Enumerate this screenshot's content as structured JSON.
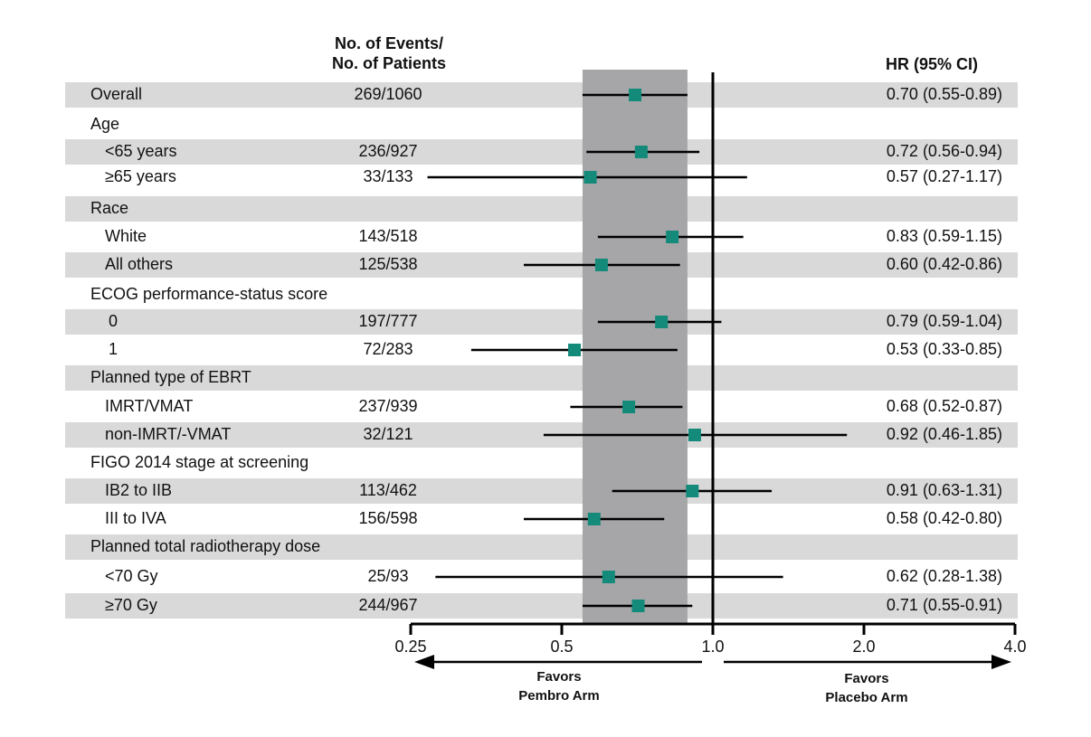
{
  "header": {
    "events_line1": "No. of  Events/",
    "events_line2": "No. of Patients",
    "hr_label": "HR (95% CI)"
  },
  "favors": {
    "left_line1": "Favors",
    "left_line2": "Pembro Arm",
    "right_line1": "Favors",
    "right_line2": "Placebo Arm"
  },
  "colors": {
    "band": "#d9d9d9",
    "ci_region": "#a6a6a8",
    "marker": "#138a7a",
    "line": "#000000"
  },
  "chart_data": {
    "type": "forest",
    "x_scale": "log2",
    "xlim": [
      0.25,
      4.0
    ],
    "reference_line": 1.0,
    "shaded_ci_region": [
      0.55,
      0.89
    ],
    "ticks": [
      {
        "value": 0.25,
        "label": "0.25"
      },
      {
        "value": 0.5,
        "label": "0.5"
      },
      {
        "value": 1.0,
        "label": "1.0"
      },
      {
        "value": 2.0,
        "label": "2.0"
      },
      {
        "value": 4.0,
        "label": "4.0"
      }
    ],
    "rows": [
      {
        "label": "Overall",
        "indent": 0,
        "banded": true,
        "events": "269/1060",
        "hr": 0.7,
        "lo": 0.55,
        "hi": 0.89,
        "hr_text": "0.70 (0.55-0.89)"
      },
      {
        "label": "Age",
        "indent": 0,
        "banded": false,
        "header": true
      },
      {
        "label": "<65 years",
        "indent": 1,
        "banded": true,
        "events": "236/927",
        "hr": 0.72,
        "lo": 0.56,
        "hi": 0.94,
        "hr_text": "0.72 (0.56-0.94)"
      },
      {
        "label": "≥65 years",
        "indent": 1,
        "banded": false,
        "events": "33/133",
        "hr": 0.57,
        "lo": 0.27,
        "hi": 1.17,
        "hr_text": "0.57 (0.27-1.17)"
      },
      {
        "label": "Race",
        "indent": 0,
        "banded": true,
        "header": true
      },
      {
        "label": "White",
        "indent": 2,
        "banded": false,
        "events": "143/518",
        "hr": 0.83,
        "lo": 0.59,
        "hi": 1.15,
        "hr_text": "0.83 (0.59-1.15)"
      },
      {
        "label": "All others",
        "indent": 2,
        "banded": true,
        "events": "125/538",
        "hr": 0.6,
        "lo": 0.42,
        "hi": 0.86,
        "hr_text": "0.60 (0.42-0.86)"
      },
      {
        "label": "ECOG performance-status score",
        "indent": 0,
        "banded": false,
        "header": true
      },
      {
        "label": "0",
        "indent": 3,
        "banded": true,
        "events": "197/777",
        "hr": 0.79,
        "lo": 0.59,
        "hi": 1.04,
        "hr_text": "0.79 (0.59-1.04)"
      },
      {
        "label": "1",
        "indent": 3,
        "banded": false,
        "events": "72/283",
        "hr": 0.53,
        "lo": 0.33,
        "hi": 0.85,
        "hr_text": "0.53 (0.33-0.85)"
      },
      {
        "label": "Planned type of EBRT",
        "indent": 0,
        "banded": true,
        "header": true
      },
      {
        "label": "IMRT/VMAT",
        "indent": 2,
        "banded": false,
        "events": "237/939",
        "hr": 0.68,
        "lo": 0.52,
        "hi": 0.87,
        "hr_text": "0.68 (0.52-0.87)"
      },
      {
        "label": "non-IMRT/-VMAT",
        "indent": 2,
        "banded": true,
        "events": "32/121",
        "hr": 0.92,
        "lo": 0.46,
        "hi": 1.85,
        "hr_text": "0.92 (0.46-1.85)"
      },
      {
        "label": "FIGO 2014 stage at screening",
        "indent": 0,
        "banded": false,
        "header": true
      },
      {
        "label": "IB2 to IIB",
        "indent": 2,
        "banded": true,
        "events": "113/462",
        "hr": 0.91,
        "lo": 0.63,
        "hi": 1.31,
        "hr_text": "0.91 (0.63-1.31)"
      },
      {
        "label": "III to IVA",
        "indent": 2,
        "banded": false,
        "events": "156/598",
        "hr": 0.58,
        "lo": 0.42,
        "hi": 0.8,
        "hr_text": "0.58 (0.42-0.80)"
      },
      {
        "label": "Planned total radiotherapy dose",
        "indent": 0,
        "banded": true,
        "header": true
      },
      {
        "label": "<70 Gy",
        "indent": 2,
        "banded": false,
        "events": "25/93",
        "hr": 0.62,
        "lo": 0.28,
        "hi": 1.38,
        "hr_text": "0.62 (0.28-1.38)"
      },
      {
        "label": "≥70 Gy",
        "indent": 2,
        "banded": true,
        "events": "244/967",
        "hr": 0.71,
        "lo": 0.55,
        "hi": 0.91,
        "hr_text": "0.71 (0.55-0.91)"
      }
    ]
  }
}
